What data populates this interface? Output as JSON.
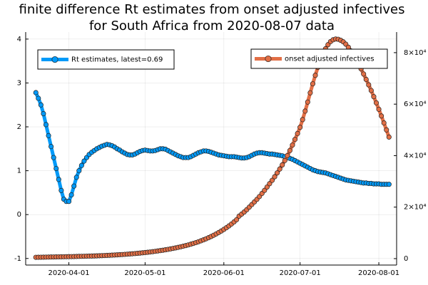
{
  "chart_data": {
    "type": "line",
    "title": [
      "finite difference Rt estimates from onset adjusted infectives",
      "for South Africa from 2020-08-07 data"
    ],
    "x": [
      "2020-03-19",
      "2020-03-20",
      "2020-03-21",
      "2020-03-22",
      "2020-03-23",
      "2020-03-24",
      "2020-03-25",
      "2020-03-26",
      "2020-03-27",
      "2020-03-28",
      "2020-03-29",
      "2020-03-30",
      "2020-03-31",
      "2020-04-01",
      "2020-04-02",
      "2020-04-03",
      "2020-04-04",
      "2020-04-05",
      "2020-04-06",
      "2020-04-07",
      "2020-04-08",
      "2020-04-09",
      "2020-04-10",
      "2020-04-11",
      "2020-04-12",
      "2020-04-13",
      "2020-04-14",
      "2020-04-15",
      "2020-04-16",
      "2020-04-17",
      "2020-04-18",
      "2020-04-19",
      "2020-04-20",
      "2020-04-21",
      "2020-04-22",
      "2020-04-23",
      "2020-04-24",
      "2020-04-25",
      "2020-04-26",
      "2020-04-27",
      "2020-04-28",
      "2020-04-29",
      "2020-04-30",
      "2020-05-01",
      "2020-05-02",
      "2020-05-03",
      "2020-05-04",
      "2020-05-05",
      "2020-05-06",
      "2020-05-07",
      "2020-05-08",
      "2020-05-09",
      "2020-05-10",
      "2020-05-11",
      "2020-05-12",
      "2020-05-13",
      "2020-05-14",
      "2020-05-15",
      "2020-05-16",
      "2020-05-17",
      "2020-05-18",
      "2020-05-19",
      "2020-05-20",
      "2020-05-21",
      "2020-05-22",
      "2020-05-23",
      "2020-05-24",
      "2020-05-25",
      "2020-05-26",
      "2020-05-27",
      "2020-05-28",
      "2020-05-29",
      "2020-05-30",
      "2020-05-31",
      "2020-06-01",
      "2020-06-02",
      "2020-06-03",
      "2020-06-04",
      "2020-06-05",
      "2020-06-06",
      "2020-06-07",
      "2020-06-08",
      "2020-06-09",
      "2020-06-10",
      "2020-06-11",
      "2020-06-12",
      "2020-06-13",
      "2020-06-14",
      "2020-06-15",
      "2020-06-16",
      "2020-06-17",
      "2020-06-18",
      "2020-06-19",
      "2020-06-20",
      "2020-06-21",
      "2020-06-22",
      "2020-06-23",
      "2020-06-24",
      "2020-06-25",
      "2020-06-26",
      "2020-06-27",
      "2020-06-28",
      "2020-06-29",
      "2020-06-30",
      "2020-07-01",
      "2020-07-02",
      "2020-07-03",
      "2020-07-04",
      "2020-07-05",
      "2020-07-06",
      "2020-07-07",
      "2020-07-08",
      "2020-07-09",
      "2020-07-10",
      "2020-07-11",
      "2020-07-12",
      "2020-07-13",
      "2020-07-14",
      "2020-07-15",
      "2020-07-16",
      "2020-07-17",
      "2020-07-18",
      "2020-07-19",
      "2020-07-20",
      "2020-07-21",
      "2020-07-22",
      "2020-07-23",
      "2020-07-24",
      "2020-07-25",
      "2020-07-26",
      "2020-07-27",
      "2020-07-28",
      "2020-07-29",
      "2020-07-30",
      "2020-07-31",
      "2020-08-01",
      "2020-08-02",
      "2020-08-03",
      "2020-08-04",
      "2020-08-05"
    ],
    "series": [
      {
        "name": "Rt estimates, latest=0.69",
        "color": "#009af9",
        "legend": "top-left",
        "values": [
          2.78,
          2.65,
          2.5,
          2.3,
          2.05,
          1.8,
          1.55,
          1.3,
          1.05,
          0.8,
          0.55,
          0.35,
          0.3,
          0.3,
          0.45,
          0.65,
          0.85,
          1.0,
          1.12,
          1.22,
          1.3,
          1.37,
          1.42,
          1.46,
          1.5,
          1.53,
          1.56,
          1.58,
          1.6,
          1.59,
          1.57,
          1.54,
          1.5,
          1.47,
          1.43,
          1.4,
          1.37,
          1.36,
          1.36,
          1.38,
          1.41,
          1.44,
          1.46,
          1.47,
          1.46,
          1.45,
          1.45,
          1.46,
          1.48,
          1.5,
          1.5,
          1.49,
          1.46,
          1.43,
          1.4,
          1.37,
          1.34,
          1.32,
          1.3,
          1.3,
          1.3,
          1.32,
          1.35,
          1.38,
          1.41,
          1.43,
          1.45,
          1.45,
          1.44,
          1.42,
          1.4,
          1.38,
          1.36,
          1.35,
          1.34,
          1.33,
          1.32,
          1.32,
          1.32,
          1.31,
          1.3,
          1.29,
          1.29,
          1.3,
          1.32,
          1.35,
          1.38,
          1.4,
          1.41,
          1.41,
          1.4,
          1.39,
          1.38,
          1.38,
          1.37,
          1.36,
          1.35,
          1.34,
          1.32,
          1.3,
          1.28,
          1.26,
          1.23,
          1.2,
          1.17,
          1.14,
          1.11,
          1.08,
          1.05,
          1.02,
          1.0,
          0.98,
          0.97,
          0.96,
          0.95,
          0.93,
          0.91,
          0.89,
          0.87,
          0.85,
          0.83,
          0.81,
          0.79,
          0.78,
          0.77,
          0.76,
          0.75,
          0.74,
          0.73,
          0.72,
          0.72,
          0.71,
          0.71,
          0.7,
          0.7,
          0.7,
          0.69,
          0.69,
          0.69,
          0.69
        ]
      },
      {
        "name": "onset adjusted infectives",
        "color": "#e26f46",
        "legend": "top-right",
        "axis": "y2",
        "values": [
          500,
          520,
          540,
          560,
          580,
          600,
          620,
          640,
          660,
          680,
          700,
          720,
          740,
          760,
          780,
          800,
          830,
          860,
          890,
          920,
          950,
          980,
          1010,
          1040,
          1080,
          1120,
          1160,
          1200,
          1250,
          1300,
          1350,
          1400,
          1460,
          1520,
          1580,
          1650,
          1720,
          1800,
          1880,
          1960,
          2050,
          2150,
          2250,
          2350,
          2460,
          2580,
          2700,
          2830,
          2970,
          3110,
          3260,
          3420,
          3590,
          3770,
          3960,
          4160,
          4370,
          4590,
          4820,
          5060,
          5320,
          5600,
          5900,
          6220,
          6560,
          6920,
          7300,
          7700,
          8130,
          8590,
          9080,
          9600,
          10150,
          10730,
          11350,
          12000,
          12700,
          13450,
          14250,
          15100,
          16500,
          17300,
          18100,
          19000,
          20000,
          21000,
          22000,
          23000,
          24100,
          25300,
          26500,
          27800,
          29100,
          30400,
          31800,
          33300,
          34800,
          36400,
          38100,
          40000,
          42000,
          44100,
          46300,
          48600,
          51000,
          54000,
          57300,
          60800,
          64400,
          67900,
          71200,
          74300,
          77100,
          79500,
          81500,
          83100,
          84300,
          85000,
          85300,
          85200,
          84800,
          84200,
          83300,
          82100,
          80700,
          79100,
          77400,
          75600,
          73700,
          71700,
          69600,
          67500,
          65300,
          62900,
          60500,
          58000,
          55400,
          52700,
          50000,
          47200
        ]
      }
    ],
    "xlim": [
      "2020-03-15",
      "2020-08-08"
    ],
    "xticks": [
      "2020-04-01",
      "2020-05-01",
      "2020-06-01",
      "2020-07-01",
      "2020-08-01"
    ],
    "ylim": [
      -1.15,
      4.16
    ],
    "yticks": [
      -1,
      0,
      1,
      2,
      3,
      4
    ],
    "y2lim": [
      -2500,
      88000
    ],
    "y2ticks": [
      0,
      {
        "value": 20000,
        "label": "2×10⁴"
      },
      {
        "value": 40000,
        "label": "4×10⁴"
      },
      {
        "value": 60000,
        "label": "6×10⁴"
      },
      {
        "value": 80000,
        "label": "8×10⁴"
      }
    ],
    "grid": true
  }
}
